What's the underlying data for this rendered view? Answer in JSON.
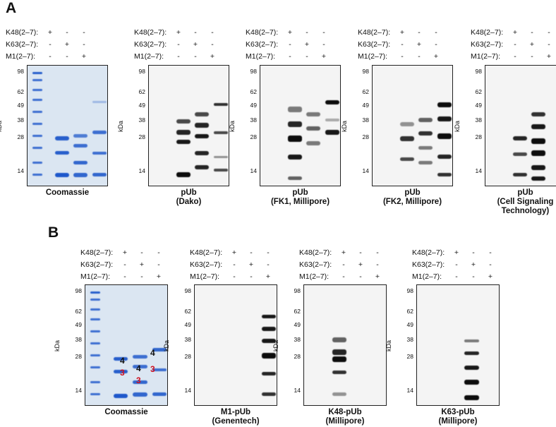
{
  "panel_a": {
    "letter": "A",
    "blots": [
      {
        "caption": "Coomassie",
        "type": "gel"
      },
      {
        "caption": "pUb\n(Dako)",
        "type": "film"
      },
      {
        "caption": "pUb\n(FK1, Millipore)",
        "type": "film"
      },
      {
        "caption": "pUb\n(FK2, Millipore)",
        "type": "film"
      },
      {
        "caption": "pUb\n(Cell Signaling\nTechnology)",
        "type": "film"
      }
    ]
  },
  "panel_b": {
    "letter": "B",
    "blots": [
      {
        "caption": "Coomassie",
        "type": "gel"
      },
      {
        "caption": "M1-pUb\n(Genentech)",
        "type": "film"
      },
      {
        "caption": "K48-pUb\n(Millipore)",
        "type": "film"
      },
      {
        "caption": "K63-pUb\n(Millipore)",
        "type": "film"
      }
    ],
    "annotations": [
      "4",
      "3",
      "4",
      "3",
      "4",
      "3"
    ]
  },
  "lane_header": {
    "rows": [
      {
        "label": "K48(2–7):",
        "signs": [
          "+",
          "-",
          "-"
        ]
      },
      {
        "label": "K63(2–7):",
        "signs": [
          "-",
          "+",
          "-"
        ]
      },
      {
        "label": "M1(2–7):",
        "signs": [
          "-",
          "-",
          "+"
        ]
      }
    ]
  },
  "axis": {
    "unit": "kDa",
    "ticks": [
      "98",
      "62",
      "49",
      "38",
      "28",
      "14"
    ]
  }
}
